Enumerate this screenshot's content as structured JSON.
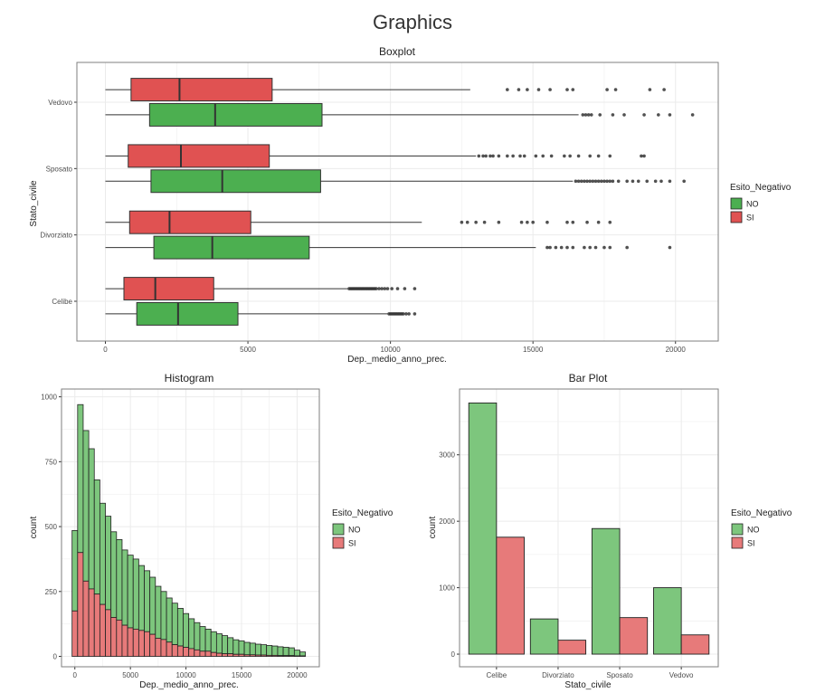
{
  "page_title": "Graphics",
  "colors": {
    "NO": "#4CAF50",
    "SI": "#E05252",
    "NO_alpha": "#7DC67D",
    "SI_alpha": "#E77A7A",
    "grid": "#EBEBEB",
    "panel_border": "#7F7F7F",
    "outline": "#222222"
  },
  "chart_data": [
    {
      "id": "boxplot",
      "type": "boxplot",
      "title": "Boxplot",
      "xlabel": "Dep._medio_anno_prec.",
      "ylabel": "Stato_civile",
      "xlim": [
        -1000,
        21500
      ],
      "xticks": [
        0,
        5000,
        10000,
        15000,
        20000
      ],
      "categories": [
        "Celibe",
        "Divorziato",
        "Sposato",
        "Vedovo"
      ],
      "legend": {
        "title": "Esito_Negativo",
        "position": "right",
        "entries": [
          "NO",
          "SI"
        ]
      },
      "boxes": [
        {
          "category": "Celibe",
          "group": "SI",
          "whisker_low": 0,
          "q1": 650,
          "median": 1750,
          "q3": 3800,
          "whisker_high": 8500,
          "outliers": [
            8550,
            8600,
            8650,
            8700,
            8750,
            8800,
            8850,
            8900,
            8950,
            9000,
            9050,
            9100,
            9150,
            9200,
            9250,
            9300,
            9350,
            9400,
            9450,
            9500,
            9600,
            9700,
            9800,
            9900,
            10050,
            10250,
            10500,
            10850
          ]
        },
        {
          "category": "Celibe",
          "group": "NO",
          "whisker_low": 0,
          "q1": 1100,
          "median": 2550,
          "q3": 4650,
          "whisker_high": 9900,
          "outliers": [
            9950,
            10000,
            10050,
            10100,
            10150,
            10200,
            10250,
            10300,
            10350,
            10400,
            10450,
            10550,
            10650,
            10850
          ]
        },
        {
          "category": "Divorziato",
          "group": "SI",
          "whisker_low": 0,
          "q1": 850,
          "median": 2250,
          "q3": 5100,
          "whisker_high": 11100,
          "outliers": [
            12500,
            12700,
            13000,
            13300,
            13800,
            14600,
            14800,
            15000,
            15500,
            16200,
            16400,
            16900,
            17300,
            17700
          ]
        },
        {
          "category": "Divorziato",
          "group": "NO",
          "whisker_low": 0,
          "q1": 1700,
          "median": 3750,
          "q3": 7150,
          "whisker_high": 15100,
          "outliers": [
            15500,
            15600,
            15800,
            16000,
            16200,
            16400,
            16800,
            17000,
            17200,
            17500,
            17700,
            18300,
            19800
          ]
        },
        {
          "category": "Sposato",
          "group": "SI",
          "whisker_low": 0,
          "q1": 800,
          "median": 2650,
          "q3": 5750,
          "whisker_high": 13000,
          "outliers": [
            13100,
            13250,
            13350,
            13500,
            13600,
            13800,
            14100,
            14300,
            14550,
            14700,
            15100,
            15350,
            15650,
            16100,
            16300,
            16600,
            17000,
            17300,
            17700,
            18800,
            18900
          ]
        },
        {
          "category": "Sposato",
          "group": "NO",
          "whisker_low": 0,
          "q1": 1600,
          "median": 4100,
          "q3": 7550,
          "whisker_high": 16400,
          "outliers": [
            16500,
            16600,
            16700,
            16800,
            16900,
            17000,
            17100,
            17200,
            17300,
            17400,
            17500,
            17600,
            17700,
            17800,
            18000,
            18300,
            18500,
            18700,
            19000,
            19300,
            19500,
            19800,
            20300
          ]
        },
        {
          "category": "Vedovo",
          "group": "SI",
          "whisker_low": 0,
          "q1": 900,
          "median": 2600,
          "q3": 5850,
          "whisker_high": 12800,
          "outliers": [
            14100,
            14500,
            14800,
            15200,
            15600,
            16200,
            16400,
            17600,
            17900,
            19100,
            19600
          ]
        },
        {
          "category": "Vedovo",
          "group": "NO",
          "whisker_low": 0,
          "q1": 1550,
          "median": 3850,
          "q3": 7600,
          "whisker_high": 16600,
          "outliers": [
            16750,
            16850,
            16950,
            17050,
            17350,
            17800,
            18200,
            18900,
            19400,
            19800,
            20600
          ]
        }
      ]
    },
    {
      "id": "histogram",
      "type": "bar",
      "stacked": true,
      "title": "Histogram",
      "xlabel": "Dep._medio_anno_prec.",
      "ylabel": "count",
      "xlim": [
        -1200,
        22000
      ],
      "ylim": [
        -40,
        1030
      ],
      "xticks": [
        0,
        5000,
        10000,
        15000,
        20000
      ],
      "yticks": [
        0,
        250,
        500,
        750,
        1000
      ],
      "bin_start": -250,
      "bin_width": 500,
      "legend": {
        "title": "Esito_Negativo",
        "position": "right",
        "entries": [
          "NO",
          "SI"
        ]
      },
      "series": [
        {
          "name": "NO",
          "values": [
            310,
            570,
            580,
            540,
            440,
            390,
            360,
            330,
            310,
            290,
            280,
            270,
            250,
            235,
            220,
            200,
            185,
            170,
            160,
            145,
            130,
            115,
            105,
            95,
            85,
            80,
            75,
            70,
            62,
            56,
            52,
            48,
            45,
            42,
            40,
            38,
            36,
            34,
            32,
            30,
            22,
            15
          ]
        },
        {
          "name": "SI",
          "values": [
            175,
            400,
            290,
            260,
            240,
            200,
            180,
            150,
            140,
            120,
            110,
            105,
            100,
            95,
            85,
            70,
            65,
            55,
            45,
            40,
            35,
            30,
            25,
            20,
            20,
            15,
            12,
            10,
            10,
            8,
            8,
            6,
            6,
            5,
            5,
            4,
            4,
            3,
            3,
            3,
            2,
            2
          ]
        }
      ]
    },
    {
      "id": "barplot",
      "type": "bar",
      "title": "Bar Plot",
      "xlabel": "Stato_civile",
      "ylabel": "count",
      "ylim": [
        -190,
        3990
      ],
      "yticks": [
        0,
        1000,
        2000,
        3000
      ],
      "categories": [
        "Celibe",
        "Divorziato",
        "Sposato",
        "Vedovo"
      ],
      "legend": {
        "title": "Esito_Negativo",
        "position": "right",
        "entries": [
          "NO",
          "SI"
        ]
      },
      "series": [
        {
          "name": "NO",
          "values": [
            3780,
            530,
            1890,
            1000
          ]
        },
        {
          "name": "SI",
          "values": [
            1760,
            210,
            550,
            290
          ]
        }
      ]
    }
  ]
}
